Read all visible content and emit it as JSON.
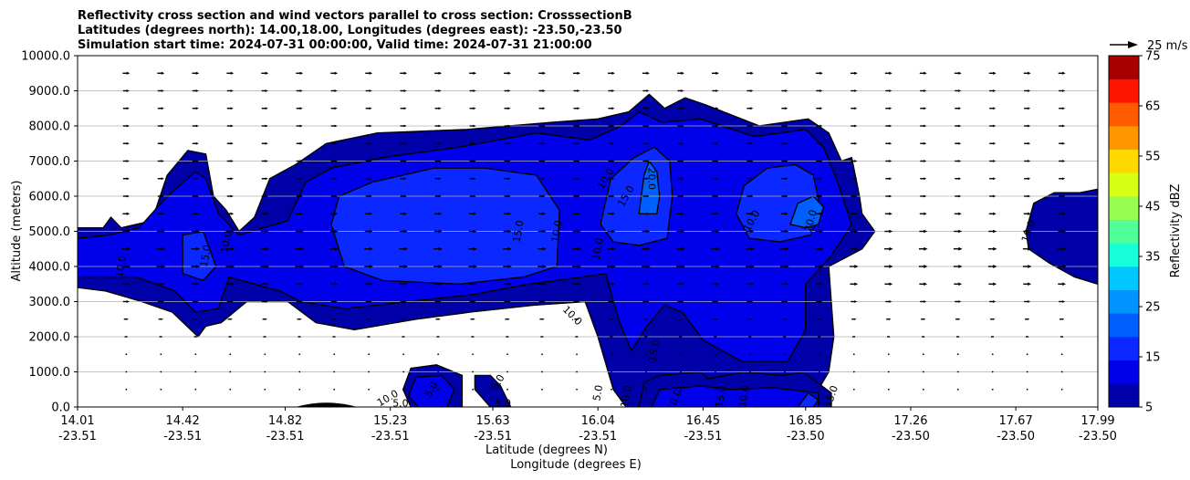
{
  "chart_data": {
    "type": "contour",
    "title": [
      "Reflectivity cross section and wind vectors parallel to cross section: CrosssectionB",
      "Latitudes (degrees north): 14.00,18.00, Longitudes (degrees east): -23.50,-23.50",
      "Simulation start time: 2024-07-31 00:00:00, Valid time: 2024-07-31 21:00:00"
    ],
    "ylabel": "Altitude (meters)",
    "xlabel_lat": "Latitude (degrees N)",
    "xlabel_lon": "Longitude (degrees E)",
    "ylim": [
      0,
      10000
    ],
    "yticks": [
      "0.0",
      "1000.0",
      "2000.0",
      "3000.0",
      "4000.0",
      "5000.0",
      "6000.0",
      "7000.0",
      "8000.0",
      "9000.0",
      "10000.0"
    ],
    "xlim": [
      14.01,
      17.99
    ],
    "xticks": [
      {
        "lat": "14.01",
        "lon": "-23.51"
      },
      {
        "lat": "14.42",
        "lon": "-23.51"
      },
      {
        "lat": "14.82",
        "lon": "-23.51"
      },
      {
        "lat": "15.23",
        "lon": "-23.51"
      },
      {
        "lat": "15.63",
        "lon": "-23.51"
      },
      {
        "lat": "16.04",
        "lon": "-23.51"
      },
      {
        "lat": "16.45",
        "lon": "-23.51"
      },
      {
        "lat": "16.85",
        "lon": "-23.50"
      },
      {
        "lat": "17.26",
        "lon": "-23.50"
      },
      {
        "lat": "17.67",
        "lon": "-23.50"
      },
      {
        "lat": "17.99",
        "lon": "-23.50"
      }
    ],
    "grid": "horizontal",
    "colorbar": {
      "label": "Reflectivity dBZ",
      "levels": [
        5,
        10,
        15,
        20,
        25,
        30,
        35,
        40,
        45,
        50,
        55,
        60,
        65,
        70,
        75
      ],
      "ticks": [
        "5",
        "15",
        "25",
        "35",
        "45",
        "55",
        "65",
        "75"
      ],
      "colors": [
        "#0000a8",
        "#0000ea",
        "#0a28ff",
        "#0060ff",
        "#0094ff",
        "#00c8ff",
        "#16ffd8",
        "#50ff98",
        "#98ff50",
        "#d8ff16",
        "#ffd800",
        "#ff9600",
        "#ff5a00",
        "#ff1400",
        "#a80000"
      ]
    },
    "quiver_key": "25 m/s",
    "contour_labels": [
      {
        "text": "10.0",
        "lat": 14.18,
        "alt": 4000,
        "rot": -80
      },
      {
        "text": "15.0",
        "lat": 14.51,
        "alt": 4300,
        "rot": -80
      },
      {
        "text": "10.0",
        "lat": 14.59,
        "alt": 4700,
        "rot": -80
      },
      {
        "text": "15.0",
        "lat": 15.73,
        "alt": 5000,
        "rot": -80
      },
      {
        "text": "10.0",
        "lat": 15.88,
        "alt": 5000,
        "rot": -80
      },
      {
        "text": "10.0",
        "lat": 16.04,
        "alt": 4500,
        "rot": -80
      },
      {
        "text": "10.0",
        "lat": 16.07,
        "alt": 6500,
        "rot": -60
      },
      {
        "text": "15.0",
        "lat": 16.15,
        "alt": 6000,
        "rot": -60
      },
      {
        "text": "20.0",
        "lat": 16.25,
        "alt": 6500,
        "rot": 90
      },
      {
        "text": "10.0",
        "lat": 16.64,
        "alt": 5300,
        "rot": -60
      },
      {
        "text": "20.0",
        "lat": 16.87,
        "alt": 5300,
        "rot": -75
      },
      {
        "text": "10.0",
        "lat": 15.94,
        "alt": 2600,
        "rot": 45
      },
      {
        "text": "15.0",
        "lat": 16.26,
        "alt": 1600,
        "rot": -80
      },
      {
        "text": "5.0",
        "lat": 15.39,
        "alt": 500,
        "rot": -60
      },
      {
        "text": "5.0",
        "lat": 15.27,
        "alt": 100,
        "rot": 0
      },
      {
        "text": "10.0",
        "lat": 15.22,
        "alt": 250,
        "rot": -30
      },
      {
        "text": "5.0",
        "lat": 15.65,
        "alt": 700,
        "rot": -60
      },
      {
        "text": "5.0",
        "lat": 15.67,
        "alt": 100,
        "rot": 0
      },
      {
        "text": "5.0",
        "lat": 16.04,
        "alt": 400,
        "rot": -80
      },
      {
        "text": "10.0",
        "lat": 16.15,
        "alt": 300,
        "rot": -80
      },
      {
        "text": "10.0",
        "lat": 16.34,
        "alt": 200,
        "rot": -70
      },
      {
        "text": "15.0",
        "lat": 16.52,
        "alt": 300,
        "rot": -80
      },
      {
        "text": "10.0",
        "lat": 16.61,
        "alt": 300,
        "rot": -80
      },
      {
        "text": "15.0",
        "lat": 16.95,
        "alt": 300,
        "rot": -70
      },
      {
        "text": "10.0",
        "lat": 17.72,
        "alt": 5000,
        "rot": -70
      }
    ],
    "regions": [
      {
        "level": 5,
        "points": [
          [
            14.01,
            5100
          ],
          [
            14.11,
            5100
          ],
          [
            14.14,
            5400
          ],
          [
            14.18,
            5100
          ],
          [
            14.3,
            5300
          ],
          [
            14.36,
            6600
          ],
          [
            14.44,
            7300
          ],
          [
            14.51,
            7200
          ],
          [
            14.54,
            6000
          ],
          [
            14.59,
            5600
          ],
          [
            14.64,
            5000
          ],
          [
            14.7,
            5400
          ],
          [
            14.76,
            6500
          ],
          [
            14.86,
            6900
          ],
          [
            14.98,
            7500
          ],
          [
            15.18,
            7800
          ],
          [
            15.53,
            7900
          ],
          [
            15.86,
            8100
          ],
          [
            16.04,
            8200
          ],
          [
            16.16,
            8400
          ],
          [
            16.24,
            8900
          ],
          [
            16.3,
            8500
          ],
          [
            16.38,
            8800
          ],
          [
            16.46,
            8600
          ],
          [
            16.67,
            8000
          ],
          [
            16.86,
            8200
          ],
          [
            16.94,
            7800
          ],
          [
            16.99,
            7000
          ],
          [
            17.03,
            7100
          ],
          [
            17.06,
            6000
          ],
          [
            17.07,
            5500
          ],
          [
            17.12,
            5000
          ],
          [
            17.07,
            4500
          ],
          [
            16.94,
            4000
          ],
          [
            16.96,
            2000
          ],
          [
            16.94,
            1000
          ],
          [
            16.9,
            500
          ],
          [
            16.85,
            0
          ],
          [
            16.45,
            0
          ],
          [
            16.45,
            500
          ],
          [
            16.38,
            600
          ],
          [
            16.31,
            500
          ],
          [
            16.22,
            100
          ],
          [
            16.19,
            0
          ],
          [
            16.17,
            0
          ],
          [
            16.15,
            0
          ],
          [
            16.1,
            500
          ],
          [
            16.08,
            1000
          ],
          [
            16.04,
            2000
          ],
          [
            15.99,
            3000
          ],
          [
            15.79,
            2900
          ],
          [
            15.54,
            2700
          ],
          [
            15.33,
            2500
          ],
          [
            15.09,
            2200
          ],
          [
            14.94,
            2400
          ],
          [
            14.83,
            3000
          ],
          [
            14.67,
            3000
          ],
          [
            14.57,
            2400
          ],
          [
            14.51,
            2300
          ],
          [
            14.48,
            2000
          ],
          [
            14.38,
            2700
          ],
          [
            14.26,
            3000
          ],
          [
            14.12,
            3300
          ],
          [
            14.01,
            3400
          ]
        ]
      },
      {
        "level": 5,
        "points": [
          [
            15.31,
            1100
          ],
          [
            15.41,
            1200
          ],
          [
            15.51,
            900
          ],
          [
            15.51,
            0
          ],
          [
            15.31,
            0
          ],
          [
            15.28,
            500
          ]
        ]
      },
      {
        "level": 5,
        "points": [
          [
            15.56,
            900
          ],
          [
            15.62,
            900
          ],
          [
            15.66,
            600
          ],
          [
            15.7,
            0
          ],
          [
            15.62,
            0
          ],
          [
            15.56,
            500
          ]
        ]
      },
      {
        "level": 5,
        "points": [
          [
            16.28,
            900
          ],
          [
            16.44,
            1000
          ],
          [
            16.47,
            800
          ],
          [
            16.61,
            1000
          ],
          [
            16.76,
            900
          ],
          [
            16.84,
            1000
          ],
          [
            16.95,
            400
          ],
          [
            16.95,
            0
          ],
          [
            16.2,
            0
          ],
          [
            16.22,
            700
          ]
        ]
      },
      {
        "level": 5,
        "points": [
          [
            17.71,
            5000
          ],
          [
            17.74,
            5800
          ],
          [
            17.82,
            6100
          ],
          [
            17.92,
            6100
          ],
          [
            17.99,
            6200
          ],
          [
            17.99,
            3500
          ],
          [
            17.9,
            3700
          ],
          [
            17.8,
            4100
          ],
          [
            17.72,
            4500
          ]
        ]
      },
      {
        "level": 10,
        "points": [
          [
            14.01,
            4800
          ],
          [
            14.13,
            4900
          ],
          [
            14.25,
            5100
          ],
          [
            14.36,
            6000
          ],
          [
            14.47,
            6700
          ],
          [
            14.51,
            6500
          ],
          [
            14.56,
            5500
          ],
          [
            14.64,
            4900
          ],
          [
            14.83,
            5300
          ],
          [
            14.9,
            6400
          ],
          [
            15.0,
            6800
          ],
          [
            15.2,
            7100
          ],
          [
            15.5,
            7400
          ],
          [
            15.8,
            7800
          ],
          [
            16.01,
            7600
          ],
          [
            16.13,
            8000
          ],
          [
            16.2,
            8400
          ],
          [
            16.29,
            8100
          ],
          [
            16.44,
            8200
          ],
          [
            16.65,
            7700
          ],
          [
            16.85,
            7900
          ],
          [
            16.92,
            7400
          ],
          [
            16.97,
            6500
          ],
          [
            17.03,
            5200
          ],
          [
            16.95,
            4300
          ],
          [
            16.85,
            3500
          ],
          [
            16.85,
            2200
          ],
          [
            16.78,
            1300
          ],
          [
            16.6,
            1300
          ],
          [
            16.45,
            1900
          ],
          [
            16.37,
            2700
          ],
          [
            16.3,
            2900
          ],
          [
            16.23,
            2300
          ],
          [
            16.17,
            1600
          ],
          [
            16.12,
            2500
          ],
          [
            16.07,
            3800
          ],
          [
            15.98,
            3700
          ],
          [
            15.77,
            3500
          ],
          [
            15.55,
            3200
          ],
          [
            15.3,
            3000
          ],
          [
            15.05,
            2800
          ],
          [
            14.88,
            3000
          ],
          [
            14.8,
            3300
          ],
          [
            14.6,
            3700
          ],
          [
            14.56,
            2800
          ],
          [
            14.47,
            2700
          ],
          [
            14.39,
            3300
          ],
          [
            14.24,
            3700
          ],
          [
            14.01,
            3700
          ]
        ]
      },
      {
        "level": 10,
        "points": [
          [
            15.33,
            850
          ],
          [
            15.43,
            900
          ],
          [
            15.48,
            500
          ],
          [
            15.45,
            0
          ],
          [
            15.34,
            0
          ],
          [
            15.3,
            300
          ]
        ]
      },
      {
        "level": 10,
        "points": [
          [
            16.28,
            500
          ],
          [
            16.44,
            600
          ],
          [
            16.56,
            500
          ],
          [
            16.72,
            550
          ],
          [
            16.9,
            400
          ],
          [
            16.9,
            0
          ],
          [
            16.25,
            0
          ]
        ]
      },
      {
        "level": 15,
        "points": [
          [
            14.42,
            4900
          ],
          [
            14.5,
            5000
          ],
          [
            14.55,
            4000
          ],
          [
            14.5,
            3600
          ],
          [
            14.42,
            3800
          ]
        ]
      },
      {
        "level": 15,
        "points": [
          [
            15.0,
            5200
          ],
          [
            15.03,
            6000
          ],
          [
            15.16,
            6400
          ],
          [
            15.4,
            6800
          ],
          [
            15.6,
            6800
          ],
          [
            15.8,
            6600
          ],
          [
            15.89,
            5600
          ],
          [
            15.88,
            4000
          ],
          [
            15.75,
            3700
          ],
          [
            15.5,
            3500
          ],
          [
            15.2,
            3600
          ],
          [
            15.05,
            4000
          ]
        ]
      },
      {
        "level": 15,
        "points": [
          [
            16.05,
            5200
          ],
          [
            16.09,
            6500
          ],
          [
            16.18,
            7100
          ],
          [
            16.26,
            7400
          ],
          [
            16.32,
            7000
          ],
          [
            16.33,
            6000
          ],
          [
            16.31,
            4800
          ],
          [
            16.2,
            4600
          ],
          [
            16.1,
            4700
          ]
        ]
      },
      {
        "level": 15,
        "points": [
          [
            16.58,
            5500
          ],
          [
            16.61,
            6300
          ],
          [
            16.7,
            6800
          ],
          [
            16.81,
            6900
          ],
          [
            16.88,
            6600
          ],
          [
            16.91,
            5600
          ],
          [
            16.87,
            4900
          ],
          [
            16.75,
            4700
          ],
          [
            16.63,
            4800
          ]
        ]
      },
      {
        "level": 15,
        "points": [
          [
            16.82,
            0
          ],
          [
            16.86,
            400
          ],
          [
            16.9,
            200
          ],
          [
            16.88,
            0
          ]
        ]
      },
      {
        "level": 20,
        "points": [
          [
            16.2,
            5500
          ],
          [
            16.22,
            6600
          ],
          [
            16.24,
            7000
          ],
          [
            16.27,
            6700
          ],
          [
            16.28,
            6000
          ],
          [
            16.27,
            5500
          ]
        ]
      },
      {
        "level": 20,
        "points": [
          [
            16.79,
            5200
          ],
          [
            16.82,
            5800
          ],
          [
            16.88,
            6000
          ],
          [
            16.92,
            5700
          ],
          [
            16.9,
            5200
          ],
          [
            16.85,
            5100
          ]
        ]
      }
    ],
    "wind_vectors": {
      "columns_lat_from": 14.2,
      "columns_lat_to": 17.85,
      "column_count": 28,
      "altitudes_m": [
        500,
        1000,
        1500,
        2000,
        2500,
        3000,
        3500,
        4000,
        4500,
        5000,
        5500,
        6000,
        6500,
        7000,
        7500,
        8000,
        8500,
        9000,
        9500
      ],
      "speed_by_altitude_ms": [
        1,
        2,
        3,
        4,
        6,
        8,
        10,
        11,
        11,
        10,
        9,
        8,
        8,
        8,
        8,
        8,
        8,
        8,
        9
      ]
    }
  }
}
